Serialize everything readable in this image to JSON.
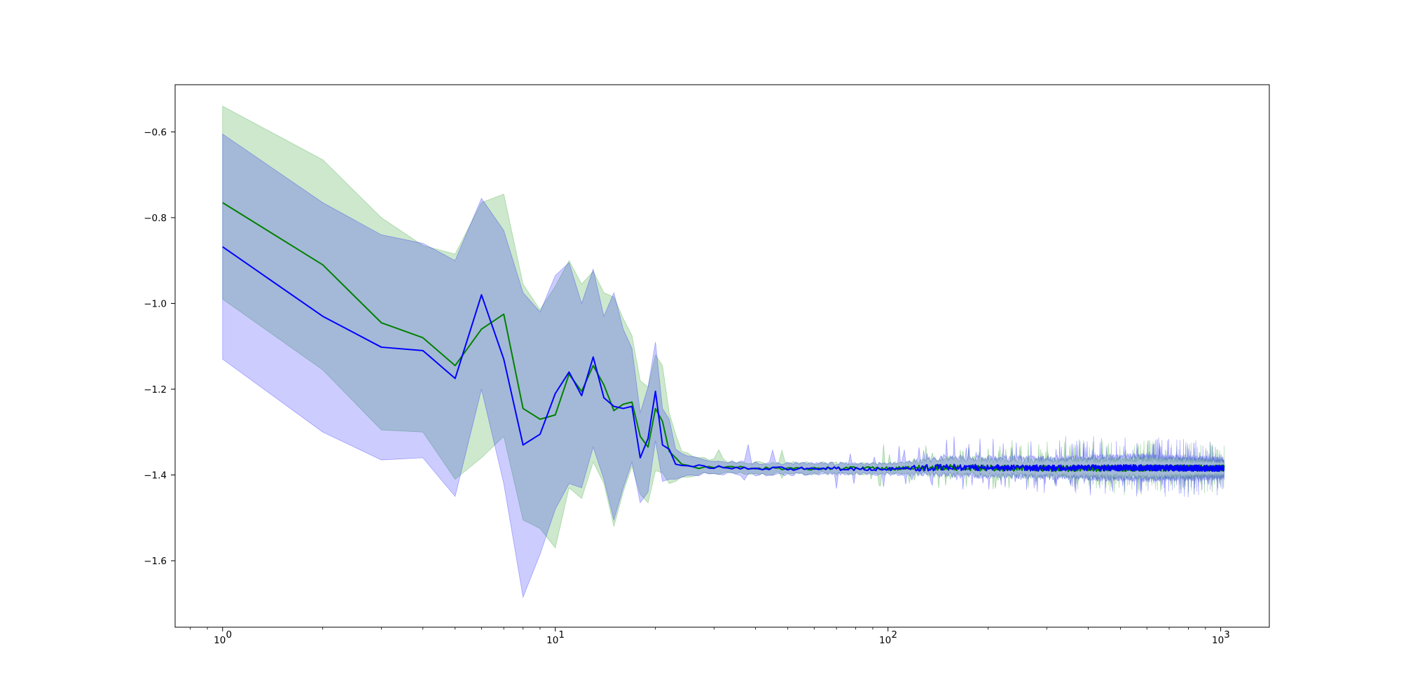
{
  "chart_data": {
    "type": "line",
    "title": "",
    "xlabel": "",
    "ylabel": "",
    "x_scale": "log",
    "xlim": [
      0.72,
      1400
    ],
    "ylim": [
      -1.755,
      -0.49
    ],
    "grid": false,
    "legend": null,
    "x_ticks": [
      {
        "value": 1,
        "base": "10",
        "exp": "0"
      },
      {
        "value": 10,
        "base": "10",
        "exp": "1"
      },
      {
        "value": 100,
        "base": "10",
        "exp": "2"
      },
      {
        "value": 1000,
        "base": "10",
        "exp": "3"
      }
    ],
    "y_ticks": [
      {
        "value": -0.6,
        "label": "−0.6"
      },
      {
        "value": -0.8,
        "label": "−0.8"
      },
      {
        "value": -1.0,
        "label": "−1.0"
      },
      {
        "value": -1.2,
        "label": "−1.2"
      },
      {
        "value": -1.4,
        "label": "−1.4"
      },
      {
        "value": -1.6,
        "label": "−1.6"
      }
    ],
    "series": [
      {
        "color": "#008000",
        "band_color": "#2ca02c",
        "band_opacity": 0.24,
        "points": [
          {
            "x": 1,
            "y": -0.765,
            "lo": -0.99,
            "hi": -0.54
          },
          {
            "x": 2,
            "y": -0.91,
            "lo": -1.155,
            "hi": -0.665
          },
          {
            "x": 3,
            "y": -1.045,
            "lo": -1.295,
            "hi": -0.8
          },
          {
            "x": 4,
            "y": -1.08,
            "lo": -1.3,
            "hi": -0.865
          },
          {
            "x": 5,
            "y": -1.145,
            "lo": -1.41,
            "hi": -0.885
          },
          {
            "x": 6,
            "y": -1.06,
            "lo": -1.36,
            "hi": -0.765
          },
          {
            "x": 7,
            "y": -1.025,
            "lo": -1.31,
            "hi": -0.745
          },
          {
            "x": 8,
            "y": -1.245,
            "lo": -1.505,
            "hi": -0.955
          },
          {
            "x": 9,
            "y": -1.27,
            "lo": -1.525,
            "hi": -1.015
          },
          {
            "x": 10,
            "y": -1.26,
            "lo": -1.57,
            "hi": -0.96
          },
          {
            "x": 11,
            "y": -1.165,
            "lo": -1.43,
            "hi": -0.9
          },
          {
            "x": 12,
            "y": -1.205,
            "lo": -1.455,
            "hi": -0.955
          },
          {
            "x": 13,
            "y": -1.145,
            "lo": -1.37,
            "hi": -0.925
          },
          {
            "x": 14,
            "y": -1.19,
            "lo": -1.42,
            "hi": -0.975
          },
          {
            "x": 15,
            "y": -1.25,
            "lo": -1.52,
            "hi": -0.985
          },
          {
            "x": 16,
            "y": -1.235,
            "lo": -1.44,
            "hi": -1.035
          },
          {
            "x": 17,
            "y": -1.23,
            "lo": -1.38,
            "hi": -1.075
          },
          {
            "x": 18,
            "y": -1.31,
            "lo": -1.445,
            "hi": -1.18
          },
          {
            "x": 19,
            "y": -1.335,
            "lo": -1.465,
            "hi": -1.195
          },
          {
            "x": 20,
            "y": -1.245,
            "lo": -1.39,
            "hi": -1.12
          },
          {
            "x": 21,
            "y": -1.275,
            "lo": -1.395,
            "hi": -1.145
          },
          {
            "x": 22,
            "y": -1.345,
            "lo": -1.42,
            "hi": -1.255
          },
          {
            "x": 23,
            "y": -1.36,
            "lo": -1.415,
            "hi": -1.305
          },
          {
            "x": 24,
            "y": -1.375,
            "lo": -1.405,
            "hi": -1.345
          },
          {
            "x": 26,
            "y": -1.382,
            "lo": -1.4,
            "hi": -1.36
          },
          {
            "x": 30,
            "y": -1.38,
            "lo": -1.395,
            "hi": -1.365
          },
          {
            "x": 40,
            "y": -1.385,
            "lo": -1.398,
            "hi": -1.372
          },
          {
            "x": 60,
            "y": -1.384,
            "lo": -1.396,
            "hi": -1.372
          },
          {
            "x": 100,
            "y": -1.385,
            "lo": -1.397,
            "hi": -1.373
          },
          {
            "x": 150,
            "y": -1.383,
            "lo": -1.4,
            "hi": -1.362
          },
          {
            "x": 300,
            "y": -1.385,
            "lo": -1.402,
            "hi": -1.366
          },
          {
            "x": 600,
            "y": -1.384,
            "lo": -1.405,
            "hi": -1.363
          },
          {
            "x": 1024,
            "y": -1.384,
            "lo": -1.403,
            "hi": -1.366
          }
        ]
      },
      {
        "color": "#0000ff",
        "band_color": "#0000ff",
        "band_opacity": 0.2,
        "points": [
          {
            "x": 1,
            "y": -0.868,
            "lo": -1.13,
            "hi": -0.605
          },
          {
            "x": 2,
            "y": -1.03,
            "lo": -1.3,
            "hi": -0.765
          },
          {
            "x": 3,
            "y": -1.102,
            "lo": -1.365,
            "hi": -0.84
          },
          {
            "x": 4,
            "y": -1.11,
            "lo": -1.36,
            "hi": -0.86
          },
          {
            "x": 5,
            "y": -1.175,
            "lo": -1.45,
            "hi": -0.9
          },
          {
            "x": 6,
            "y": -0.98,
            "lo": -1.2,
            "hi": -0.755
          },
          {
            "x": 7,
            "y": -1.13,
            "lo": -1.42,
            "hi": -0.83
          },
          {
            "x": 8,
            "y": -1.33,
            "lo": -1.685,
            "hi": -0.975
          },
          {
            "x": 9,
            "y": -1.305,
            "lo": -1.585,
            "hi": -1.02
          },
          {
            "x": 10,
            "y": -1.21,
            "lo": -1.48,
            "hi": -0.935
          },
          {
            "x": 11,
            "y": -1.16,
            "lo": -1.42,
            "hi": -0.905
          },
          {
            "x": 12,
            "y": -1.215,
            "lo": -1.43,
            "hi": -1.0
          },
          {
            "x": 13,
            "y": -1.125,
            "lo": -1.335,
            "hi": -0.92
          },
          {
            "x": 14,
            "y": -1.22,
            "lo": -1.41,
            "hi": -1.03
          },
          {
            "x": 15,
            "y": -1.24,
            "lo": -1.505,
            "hi": -0.975
          },
          {
            "x": 16,
            "y": -1.245,
            "lo": -1.43,
            "hi": -1.06
          },
          {
            "x": 17,
            "y": -1.24,
            "lo": -1.37,
            "hi": -1.105
          },
          {
            "x": 18,
            "y": -1.36,
            "lo": -1.465,
            "hi": -1.255
          },
          {
            "x": 19,
            "y": -1.315,
            "lo": -1.44,
            "hi": -1.195
          },
          {
            "x": 20,
            "y": -1.205,
            "lo": -1.32,
            "hi": -1.09
          },
          {
            "x": 21,
            "y": -1.33,
            "lo": -1.415,
            "hi": -1.245
          },
          {
            "x": 22,
            "y": -1.34,
            "lo": -1.41,
            "hi": -1.27
          },
          {
            "x": 23,
            "y": -1.375,
            "lo": -1.41,
            "hi": -1.34
          },
          {
            "x": 24,
            "y": -1.378,
            "lo": -1.405,
            "hi": -1.35
          },
          {
            "x": 26,
            "y": -1.38,
            "lo": -1.4,
            "hi": -1.36
          },
          {
            "x": 30,
            "y": -1.382,
            "lo": -1.397,
            "hi": -1.367
          },
          {
            "x": 40,
            "y": -1.386,
            "lo": -1.399,
            "hi": -1.373
          },
          {
            "x": 60,
            "y": -1.385,
            "lo": -1.397,
            "hi": -1.373
          },
          {
            "x": 100,
            "y": -1.386,
            "lo": -1.398,
            "hi": -1.374
          },
          {
            "x": 150,
            "y": -1.382,
            "lo": -1.4,
            "hi": -1.36
          },
          {
            "x": 300,
            "y": -1.384,
            "lo": -1.405,
            "hi": -1.362
          },
          {
            "x": 600,
            "y": -1.383,
            "lo": -1.41,
            "hi": -1.356
          },
          {
            "x": 1024,
            "y": -1.385,
            "lo": -1.405,
            "hi": -1.364
          }
        ]
      }
    ]
  }
}
